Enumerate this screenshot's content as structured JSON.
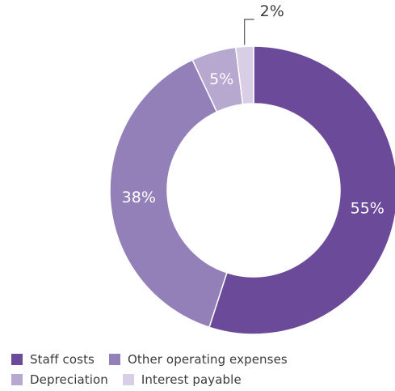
{
  "chart_data": {
    "type": "pie",
    "donut": true,
    "title": "",
    "categories": [
      "Staff costs",
      "Other operating expenses",
      "Depreciation",
      "Interest payable"
    ],
    "values": [
      55,
      38,
      5,
      2
    ],
    "labels": [
      "55%",
      "38%",
      "5%",
      "2%"
    ],
    "colors": [
      "#6c4a9a",
      "#9480b8",
      "#b7a8d0",
      "#d8cfe7"
    ],
    "start_position": "top",
    "direction": "clockwise",
    "legend_placement": "bottom-left",
    "grid": false
  }
}
